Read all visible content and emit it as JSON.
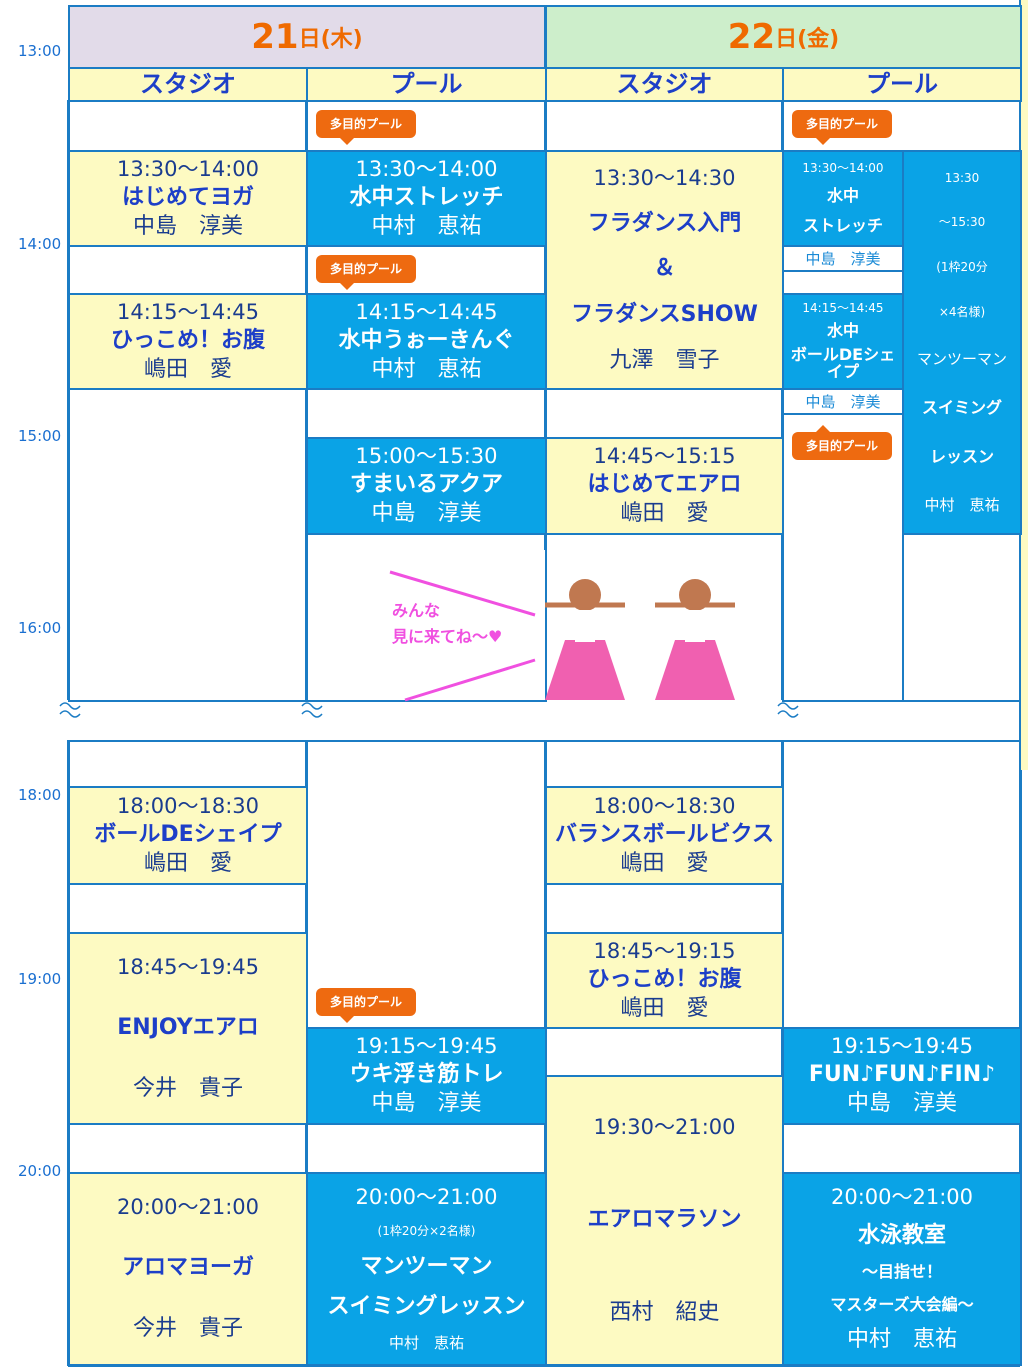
{
  "days": [
    {
      "date": "21",
      "weekday": "日(木)",
      "columns": [
        "スタジオ",
        "プール"
      ]
    },
    {
      "date": "22",
      "weekday": "日(金)",
      "columns": [
        "スタジオ",
        "プール"
      ]
    }
  ],
  "times": [
    "13:00",
    "14:00",
    "15:00",
    "16:00",
    "18:00",
    "19:00",
    "20:00"
  ],
  "sessions": [
    {
      "lines": [
        "13:30～14:00",
        "はじめてヨガ",
        "中島　淳美"
      ]
    },
    {
      "lines": [
        "14:15～14:45",
        "ひっこめ！お腹",
        "嶋田　愛"
      ]
    },
    {
      "lines": [
        "18:00～18:30",
        "ボールDEシェイプ",
        "嶋田　愛"
      ]
    },
    {
      "lines": [
        "18:45～19:45",
        "ENJOYエアロ",
        "今井　貴子"
      ]
    },
    {
      "lines": [
        "20:00～21:00",
        "アロマヨーガ",
        "今井　貴子"
      ]
    },
    {
      "lines": [
        "13:30～14:00",
        "水中ストレッチ",
        "中村　恵祐"
      ]
    },
    {
      "lines": [
        "14:15～14:45",
        "水中うぉーきんぐ",
        "中村　恵祐"
      ]
    },
    {
      "lines": [
        "15:00～15:30",
        "すまいるアクア",
        "中島　淳美"
      ]
    },
    {
      "lines": [
        "19:15～19:45",
        "ウキ浮き筋トレ",
        "中島　淳美"
      ]
    },
    {
      "lines": [
        "20:00～21:00",
        "(1枠20分×2名様)",
        "マンツーマン",
        "スイミングレッスン",
        "中村　恵祐"
      ]
    },
    {
      "lines": [
        "13:30～14:30",
        "フラダンス入門",
        "＆",
        "フラダンスSHOW",
        "九澤　雪子"
      ]
    },
    {
      "lines": [
        "14:45～15:15",
        "はじめてエアロ",
        "嶋田　愛"
      ]
    },
    {
      "lines": [
        "18:00～18:30",
        "バランスボールビクス",
        "嶋田　愛"
      ]
    },
    {
      "lines": [
        "18:45～19:15",
        "ひっこめ！お腹",
        "嶋田　愛"
      ]
    },
    {
      "lines": [
        "19:30～21:00",
        "エアロマラソン",
        "西村　紹史"
      ]
    },
    {
      "lines": [
        "13:30～14:00",
        "水中",
        "ストレッチ"
      ]
    },
    {
      "lines": [
        "中島　淳美"
      ]
    },
    {
      "lines": [
        "14:15～14:45",
        "水中",
        "ボールDEシェイプ"
      ]
    },
    {
      "lines": [
        "中島　淳美"
      ]
    },
    {
      "lines": [
        "13:30",
        "～15:30",
        "(1枠20分",
        "×4名様)",
        "マンツーマン",
        "スイミング",
        "レッスン",
        "中村　恵祐"
      ]
    },
    {
      "lines": [
        "19:15～19:45",
        "FUN♪FUN♪FIN♪",
        "中島　淳美"
      ]
    },
    {
      "lines": [
        "20:00～21:00",
        "水泳教室",
        "～目指せ！",
        "マスターズ大会編～",
        "中村　恵祐"
      ]
    }
  ],
  "badges": [
    "多目的プール",
    "多目的プール",
    "多目的プール",
    "多目的プール",
    "多目的プール"
  ],
  "annotation": [
    "みんな",
    "見に来てね～♥"
  ]
}
